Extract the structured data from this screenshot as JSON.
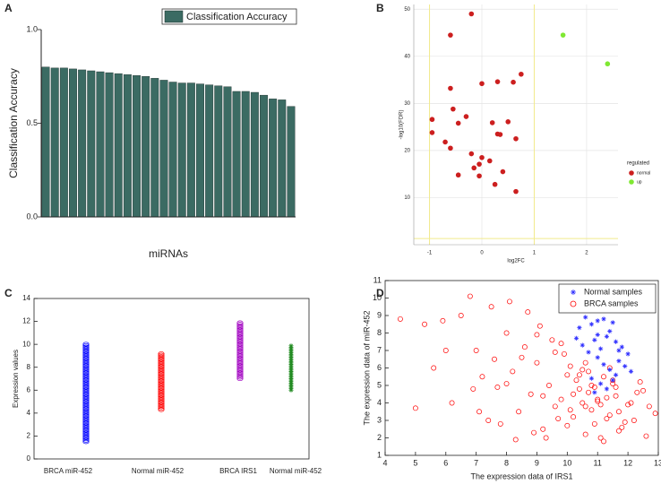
{
  "chart_data": [
    {
      "type": "bar",
      "label": "A",
      "xlabel": "miRNAs",
      "ylabel": "Classification Accuracy",
      "categories": [
        null,
        null,
        null,
        null,
        null,
        null,
        null,
        null,
        null,
        null,
        null,
        null,
        null,
        null,
        null,
        null,
        null,
        null,
        null,
        null,
        null,
        null,
        null,
        null,
        null,
        null,
        null,
        null
      ],
      "series": [
        {
          "name": "Classification Accuracy",
          "color": "#3b6b63",
          "values": [
            0.8,
            0.795,
            0.795,
            0.79,
            0.785,
            0.78,
            0.775,
            0.77,
            0.765,
            0.76,
            0.755,
            0.75,
            0.74,
            0.73,
            0.72,
            0.715,
            0.715,
            0.71,
            0.705,
            0.7,
            0.695,
            0.67,
            0.67,
            0.665,
            0.65,
            0.63,
            0.625,
            0.59
          ]
        }
      ],
      "ylim": [
        0,
        1
      ],
      "yticks": [
        {
          "value": 0,
          "label": "0.0"
        },
        {
          "value": 0.5,
          "label": "0.5"
        },
        {
          "value": 1,
          "label": "1.0"
        }
      ],
      "legend": "north"
    },
    {
      "type": "scatter",
      "label": "B",
      "xlabel": "log2FC",
      "ylabel": "-log10(FDR)",
      "legend_title": "regulated",
      "legend": "east",
      "series": [
        {
          "name": "normal",
          "color": "#cc1f1f",
          "x": [
            -0.2,
            -0.6,
            0.75,
            -0.6,
            0.3,
            0.6,
            0,
            -0.55,
            -0.3,
            -0.95,
            -0.45,
            0.2,
            0.5,
            -0.95,
            0.3,
            0.35,
            0.65,
            -0.7,
            -0.6,
            -0.2,
            0,
            0.15,
            -0.05,
            -0.15,
            0.4,
            -0.45,
            -0.05,
            0.25,
            0.65
          ],
          "values": [
            49,
            44.5,
            36.2,
            33.2,
            34.6,
            34.5,
            34.2,
            28.8,
            27.2,
            26.6,
            25.8,
            25.9,
            26.1,
            23.8,
            23.5,
            23.4,
            22.5,
            21.8,
            20.5,
            19.3,
            18.5,
            17.8,
            17.1,
            16.3,
            15.5,
            14.8,
            14.6,
            12.8,
            11.3
          ]
        },
        {
          "name": "up",
          "color": "#7fe832",
          "x": [
            1.55,
            2.4
          ],
          "values": [
            44.5,
            38.4
          ]
        }
      ],
      "xlim": [
        -1.3,
        2.6
      ],
      "ylim": [
        0,
        51
      ],
      "xticks": [
        -1,
        0,
        1,
        2
      ],
      "yticks": [
        10,
        20,
        30,
        40,
        50
      ],
      "grid": true,
      "vlines": [
        -1,
        1
      ],
      "hlines": [
        1.3
      ],
      "ref_color": "#f2ea8c"
    },
    {
      "type": "strip",
      "label": "C",
      "ylabel": "Expression values",
      "categories": [
        "BRCA miR-452",
        "Normal miR-452",
        "BRCA IRS1",
        "Normal miR-452"
      ],
      "low": [
        1.5,
        4.3,
        7.0,
        6.0
      ],
      "high": [
        10.1,
        9.2,
        11.9,
        10.0
      ],
      "colors": [
        "#0000ff",
        "#ff0000",
        "#a000c0",
        "#228b22"
      ],
      "markers": [
        "o",
        "o",
        "o",
        "*"
      ],
      "ylim": [
        0,
        14
      ],
      "yticks": [
        0,
        2,
        4,
        6,
        8,
        10,
        12,
        14
      ]
    },
    {
      "type": "scatter",
      "label": "D",
      "xlabel": "The expression data of IRS1",
      "ylabel": "The expression data of miR-452",
      "legend": "northeast",
      "series": [
        {
          "name": "BRCA samples",
          "color": "#ff0000",
          "marker": "o",
          "x": [
            4.5,
            5.0,
            5.3,
            5.6,
            5.9,
            6.2,
            6.5,
            6.8,
            7.0,
            7.2,
            7.4,
            7.6,
            7.8,
            8.0,
            8.2,
            8.4,
            8.6,
            8.8,
            9.0,
            9.2,
            9.4,
            9.6,
            9.8,
            10.0,
            10.2,
            10.4,
            10.6,
            10.8,
            11.0,
            11.2,
            11.4,
            11.6,
            11.8,
            12.0,
            12.2,
            12.4,
            12.6,
            12.9,
            6.9,
            7.5,
            8.1,
            8.7,
            9.1,
            9.5,
            9.9,
            10.1,
            10.3,
            10.5,
            10.7,
            10.9,
            11.1,
            11.3,
            11.5,
            11.7,
            12.1,
            12.5,
            8.3,
            8.9,
            9.3,
            9.7,
            10.0,
            10.2,
            10.4,
            10.6,
            10.8,
            11.0,
            11.2,
            11.4,
            11.6,
            11.9,
            7.7,
            8.5,
            9.0,
            9.6,
            10.1,
            10.5,
            10.9,
            11.3,
            11.7,
            12.3,
            6.0,
            7.1,
            8.0,
            9.2,
            10.7,
            11.5,
            9.8,
            10.6,
            11.1,
            12.7
          ],
          "values": [
            8.8,
            3.7,
            8.5,
            6.0,
            8.7,
            4.0,
            9.0,
            10.1,
            7.0,
            5.5,
            3.0,
            6.5,
            2.8,
            8.0,
            5.8,
            3.5,
            7.2,
            4.5,
            6.3,
            2.5,
            5.0,
            3.8,
            4.2,
            5.6,
            3.2,
            4.8,
            2.2,
            3.6,
            4.1,
            1.8,
            3.3,
            4.4,
            2.6,
            3.9,
            3.0,
            5.2,
            2.1,
            3.4,
            4.8,
            9.5,
            9.8,
            9.2,
            8.4,
            7.6,
            6.8,
            6.1,
            5.3,
            5.9,
            4.6,
            4.9,
            3.9,
            4.3,
            5.1,
            3.5,
            4.0,
            4.7,
            1.9,
            2.3,
            2.0,
            3.1,
            2.7,
            4.5,
            5.6,
            3.8,
            5.0,
            4.2,
            5.5,
            6.0,
            4.9,
            2.9,
            4.9,
            6.6,
            7.9,
            6.9,
            3.6,
            4.0,
            2.8,
            3.1,
            2.4,
            4.6,
            7.0,
            3.5,
            5.1,
            4.4,
            5.8,
            5.3,
            7.4,
            6.3,
            2.0,
            3.8
          ]
        },
        {
          "name": "Normal samples",
          "color": "#3030ff",
          "marker": "*",
          "x": [
            10.4,
            10.6,
            10.8,
            11.0,
            11.2,
            11.4,
            11.6,
            11.8,
            12.0,
            10.9,
            11.1,
            11.3,
            11.5,
            11.7,
            10.5,
            10.7,
            11.0,
            11.2,
            11.4,
            11.6,
            11.9,
            10.3,
            10.8,
            11.1,
            11.3,
            11.5,
            12.1,
            11.0,
            11.7,
            10.9
          ],
          "values": [
            8.3,
            8.9,
            8.5,
            7.9,
            8.8,
            8.1,
            7.5,
            7.2,
            6.8,
            7.6,
            7.1,
            7.8,
            8.6,
            6.4,
            7.3,
            6.9,
            6.6,
            6.2,
            5.9,
            5.6,
            6.1,
            7.7,
            5.4,
            5.1,
            4.8,
            5.3,
            5.8,
            8.7,
            7.0,
            4.6
          ]
        }
      ],
      "xlim": [
        4,
        13
      ],
      "ylim": [
        1,
        11
      ],
      "xticks": [
        4,
        5,
        6,
        7,
        8,
        9,
        10,
        11,
        12,
        13
      ],
      "yticks": [
        1,
        2,
        3,
        4,
        5,
        6,
        7,
        8,
        9,
        10,
        11
      ]
    }
  ]
}
